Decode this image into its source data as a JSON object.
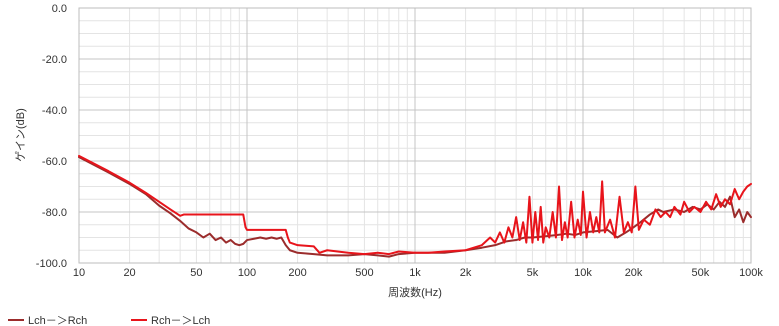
{
  "chart_data": {
    "type": "line",
    "title": "",
    "xlabel": "周波数(Hz)",
    "ylabel": "ゲイン(dB)",
    "x_scale": "log",
    "xlim": [
      10,
      100000
    ],
    "ylim": [
      -100,
      0
    ],
    "grid": true,
    "legend_position": "bottom-left",
    "x_ticks": [
      {
        "value": 10,
        "label": "10"
      },
      {
        "value": 20,
        "label": "20"
      },
      {
        "value": 50,
        "label": "50"
      },
      {
        "value": 100,
        "label": "100"
      },
      {
        "value": 200,
        "label": "200"
      },
      {
        "value": 500,
        "label": "500"
      },
      {
        "value": 1000,
        "label": "1k"
      },
      {
        "value": 2000,
        "label": "2k"
      },
      {
        "value": 5000,
        "label": "5k"
      },
      {
        "value": 10000,
        "label": "10k"
      },
      {
        "value": 20000,
        "label": "20k"
      },
      {
        "value": 50000,
        "label": "50k"
      },
      {
        "value": 100000,
        "label": "100k"
      }
    ],
    "y_ticks": [
      {
        "value": 0,
        "label": "0.0"
      },
      {
        "value": -20,
        "label": "-20.0"
      },
      {
        "value": -40,
        "label": "-40.0"
      },
      {
        "value": -60,
        "label": "-60.0"
      },
      {
        "value": -80,
        "label": "-80.0"
      },
      {
        "value": -100,
        "label": "-100.0"
      }
    ],
    "series": [
      {
        "name": "Lch－＞Rch",
        "color": "#9b2c2c",
        "points": [
          [
            10,
            -58.5
          ],
          [
            15,
            -64.5
          ],
          [
            20,
            -69
          ],
          [
            25,
            -73
          ],
          [
            30,
            -77.5
          ],
          [
            35,
            -80.5
          ],
          [
            40,
            -83.5
          ],
          [
            45,
            -86.5
          ],
          [
            50,
            -88
          ],
          [
            55,
            -90
          ],
          [
            60,
            -88.5
          ],
          [
            65,
            -91
          ],
          [
            70,
            -90
          ],
          [
            75,
            -92
          ],
          [
            80,
            -91
          ],
          [
            85,
            -92.5
          ],
          [
            90,
            -93
          ],
          [
            95,
            -92.5
          ],
          [
            100,
            -91
          ],
          [
            110,
            -90.5
          ],
          [
            120,
            -90
          ],
          [
            130,
            -90.5
          ],
          [
            140,
            -90
          ],
          [
            150,
            -90.5
          ],
          [
            160,
            -90
          ],
          [
            170,
            -93
          ],
          [
            180,
            -95
          ],
          [
            200,
            -96
          ],
          [
            250,
            -96.5
          ],
          [
            300,
            -97
          ],
          [
            400,
            -97
          ],
          [
            500,
            -96.5
          ],
          [
            600,
            -97
          ],
          [
            700,
            -97.5
          ],
          [
            800,
            -96.5
          ],
          [
            1000,
            -96
          ],
          [
            1200,
            -96
          ],
          [
            1500,
            -96
          ],
          [
            2000,
            -95
          ],
          [
            2500,
            -94
          ],
          [
            3000,
            -93
          ],
          [
            3500,
            -91.5
          ],
          [
            4000,
            -91
          ],
          [
            4500,
            -90
          ],
          [
            5000,
            -90
          ],
          [
            6000,
            -89.5
          ],
          [
            7000,
            -89
          ],
          [
            8000,
            -88.5
          ],
          [
            9000,
            -89
          ],
          [
            10000,
            -88
          ],
          [
            12000,
            -87.5
          ],
          [
            14000,
            -87
          ],
          [
            16000,
            -90
          ],
          [
            18000,
            -88
          ],
          [
            20000,
            -86
          ],
          [
            22000,
            -84
          ],
          [
            25000,
            -81
          ],
          [
            28000,
            -79
          ],
          [
            30000,
            -80
          ],
          [
            35000,
            -79
          ],
          [
            40000,
            -80
          ],
          [
            45000,
            -78
          ],
          [
            50000,
            -79
          ],
          [
            55000,
            -77
          ],
          [
            60000,
            -79
          ],
          [
            65000,
            -76
          ],
          [
            70000,
            -78
          ],
          [
            75000,
            -74
          ],
          [
            80000,
            -82
          ],
          [
            85000,
            -79
          ],
          [
            90000,
            -84
          ],
          [
            95000,
            -80
          ],
          [
            100000,
            -82
          ]
        ]
      },
      {
        "name": "Rch－＞Lch",
        "color": "#e8141b",
        "points": [
          [
            10,
            -58
          ],
          [
            15,
            -64
          ],
          [
            20,
            -68.5
          ],
          [
            25,
            -72.5
          ],
          [
            30,
            -76
          ],
          [
            35,
            -79
          ],
          [
            40,
            -81.5
          ],
          [
            42,
            -81
          ],
          [
            45,
            -81
          ],
          [
            50,
            -81
          ],
          [
            60,
            -81
          ],
          [
            70,
            -81
          ],
          [
            80,
            -81
          ],
          [
            90,
            -81
          ],
          [
            95,
            -81
          ],
          [
            98,
            -86
          ],
          [
            100,
            -87
          ],
          [
            120,
            -87
          ],
          [
            140,
            -87
          ],
          [
            160,
            -87
          ],
          [
            170,
            -87
          ],
          [
            175,
            -90
          ],
          [
            180,
            -92
          ],
          [
            200,
            -93
          ],
          [
            250,
            -93.5
          ],
          [
            270,
            -96
          ],
          [
            300,
            -95
          ],
          [
            400,
            -96
          ],
          [
            500,
            -96.5
          ],
          [
            600,
            -96
          ],
          [
            700,
            -96.5
          ],
          [
            800,
            -95.5
          ],
          [
            1000,
            -96
          ],
          [
            1200,
            -96
          ],
          [
            1500,
            -95.5
          ],
          [
            2000,
            -95
          ],
          [
            2500,
            -93
          ],
          [
            2800,
            -90
          ],
          [
            3000,
            -92
          ],
          [
            3200,
            -88
          ],
          [
            3400,
            -92
          ],
          [
            3600,
            -86
          ],
          [
            3800,
            -90
          ],
          [
            4000,
            -82
          ],
          [
            4200,
            -91
          ],
          [
            4400,
            -84
          ],
          [
            4600,
            -92
          ],
          [
            4800,
            -74
          ],
          [
            5000,
            -92
          ],
          [
            5200,
            -80
          ],
          [
            5400,
            -91
          ],
          [
            5600,
            -78
          ],
          [
            5800,
            -92
          ],
          [
            6000,
            -86
          ],
          [
            6300,
            -90
          ],
          [
            6600,
            -80
          ],
          [
            6900,
            -90
          ],
          [
            7200,
            -70
          ],
          [
            7500,
            -91
          ],
          [
            7800,
            -84
          ],
          [
            8100,
            -90
          ],
          [
            8500,
            -76
          ],
          [
            8900,
            -90
          ],
          [
            9300,
            -83
          ],
          [
            9700,
            -89
          ],
          [
            10000,
            -72
          ],
          [
            10500,
            -90
          ],
          [
            11000,
            -80
          ],
          [
            11500,
            -88
          ],
          [
            12000,
            -82
          ],
          [
            12500,
            -88
          ],
          [
            13000,
            -68
          ],
          [
            13500,
            -88
          ],
          [
            14500,
            -83
          ],
          [
            15500,
            -90
          ],
          [
            16500,
            -74
          ],
          [
            17500,
            -88
          ],
          [
            18500,
            -84
          ],
          [
            19500,
            -88
          ],
          [
            20500,
            -70
          ],
          [
            21500,
            -87
          ],
          [
            23000,
            -83
          ],
          [
            25000,
            -85
          ],
          [
            27000,
            -79
          ],
          [
            29000,
            -82
          ],
          [
            31000,
            -80
          ],
          [
            33000,
            -82
          ],
          [
            35000,
            -78
          ],
          [
            38000,
            -81
          ],
          [
            40000,
            -76
          ],
          [
            43000,
            -80
          ],
          [
            46000,
            -78
          ],
          [
            50000,
            -80
          ],
          [
            54000,
            -76
          ],
          [
            58000,
            -79
          ],
          [
            62000,
            -73
          ],
          [
            66000,
            -78
          ],
          [
            70000,
            -75
          ],
          [
            75000,
            -77
          ],
          [
            80000,
            -71
          ],
          [
            85000,
            -75
          ],
          [
            90000,
            -72
          ],
          [
            95000,
            -70
          ],
          [
            100000,
            -69
          ]
        ]
      }
    ]
  }
}
